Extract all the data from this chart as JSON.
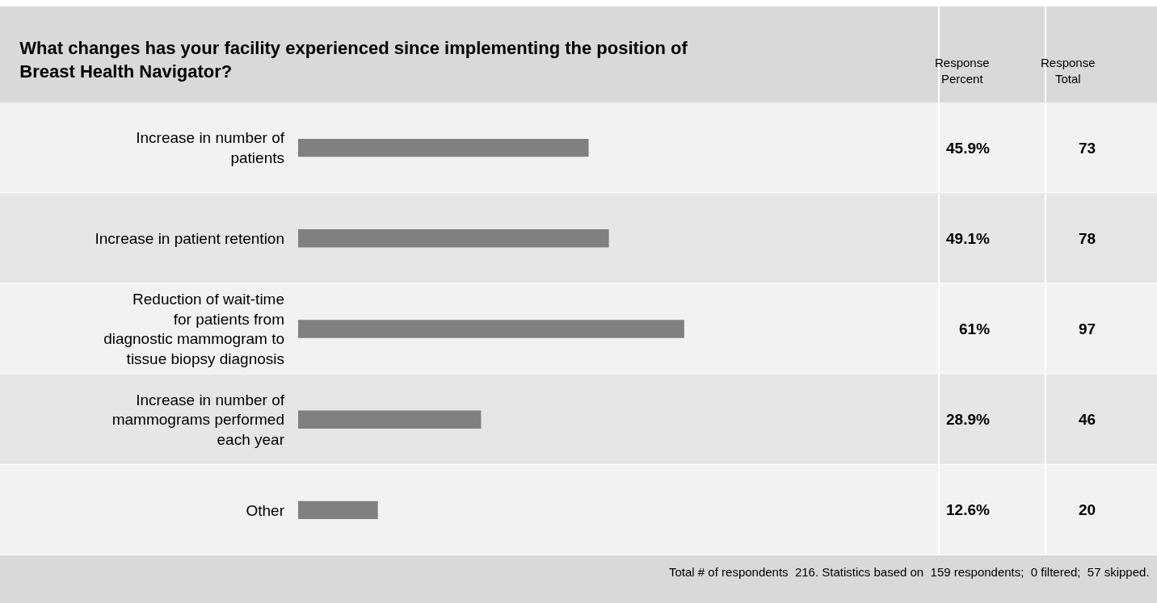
{
  "chart_data": {
    "type": "bar",
    "orientation": "horizontal",
    "title": "What changes has your facility experienced since implementing the position of Breast Health Navigator?",
    "categories": [
      "Increase in number of patients",
      "Increase in patient retention",
      "Reduction of wait-time for patients from diagnostic mammogram to tissue biopsy diagnosis",
      "Increase in number of mammograms performed each year",
      "Other"
    ],
    "values": [
      45.9,
      49.1,
      61,
      28.9,
      12.6
    ],
    "value_labels": [
      "45.9%",
      "49.1%",
      "61%",
      "28.9%",
      "12.6%"
    ],
    "color": "#808080",
    "tick_labels": "y",
    "grid": false,
    "legend": false,
    "annotations": [
      "Response Percent",
      "Response Total",
      "73",
      "78",
      "97",
      "46",
      "20",
      "Total # of respondents  216. Statistics based on  159 respondents;  0 filtered;  57 skipped."
    ]
  }
}
